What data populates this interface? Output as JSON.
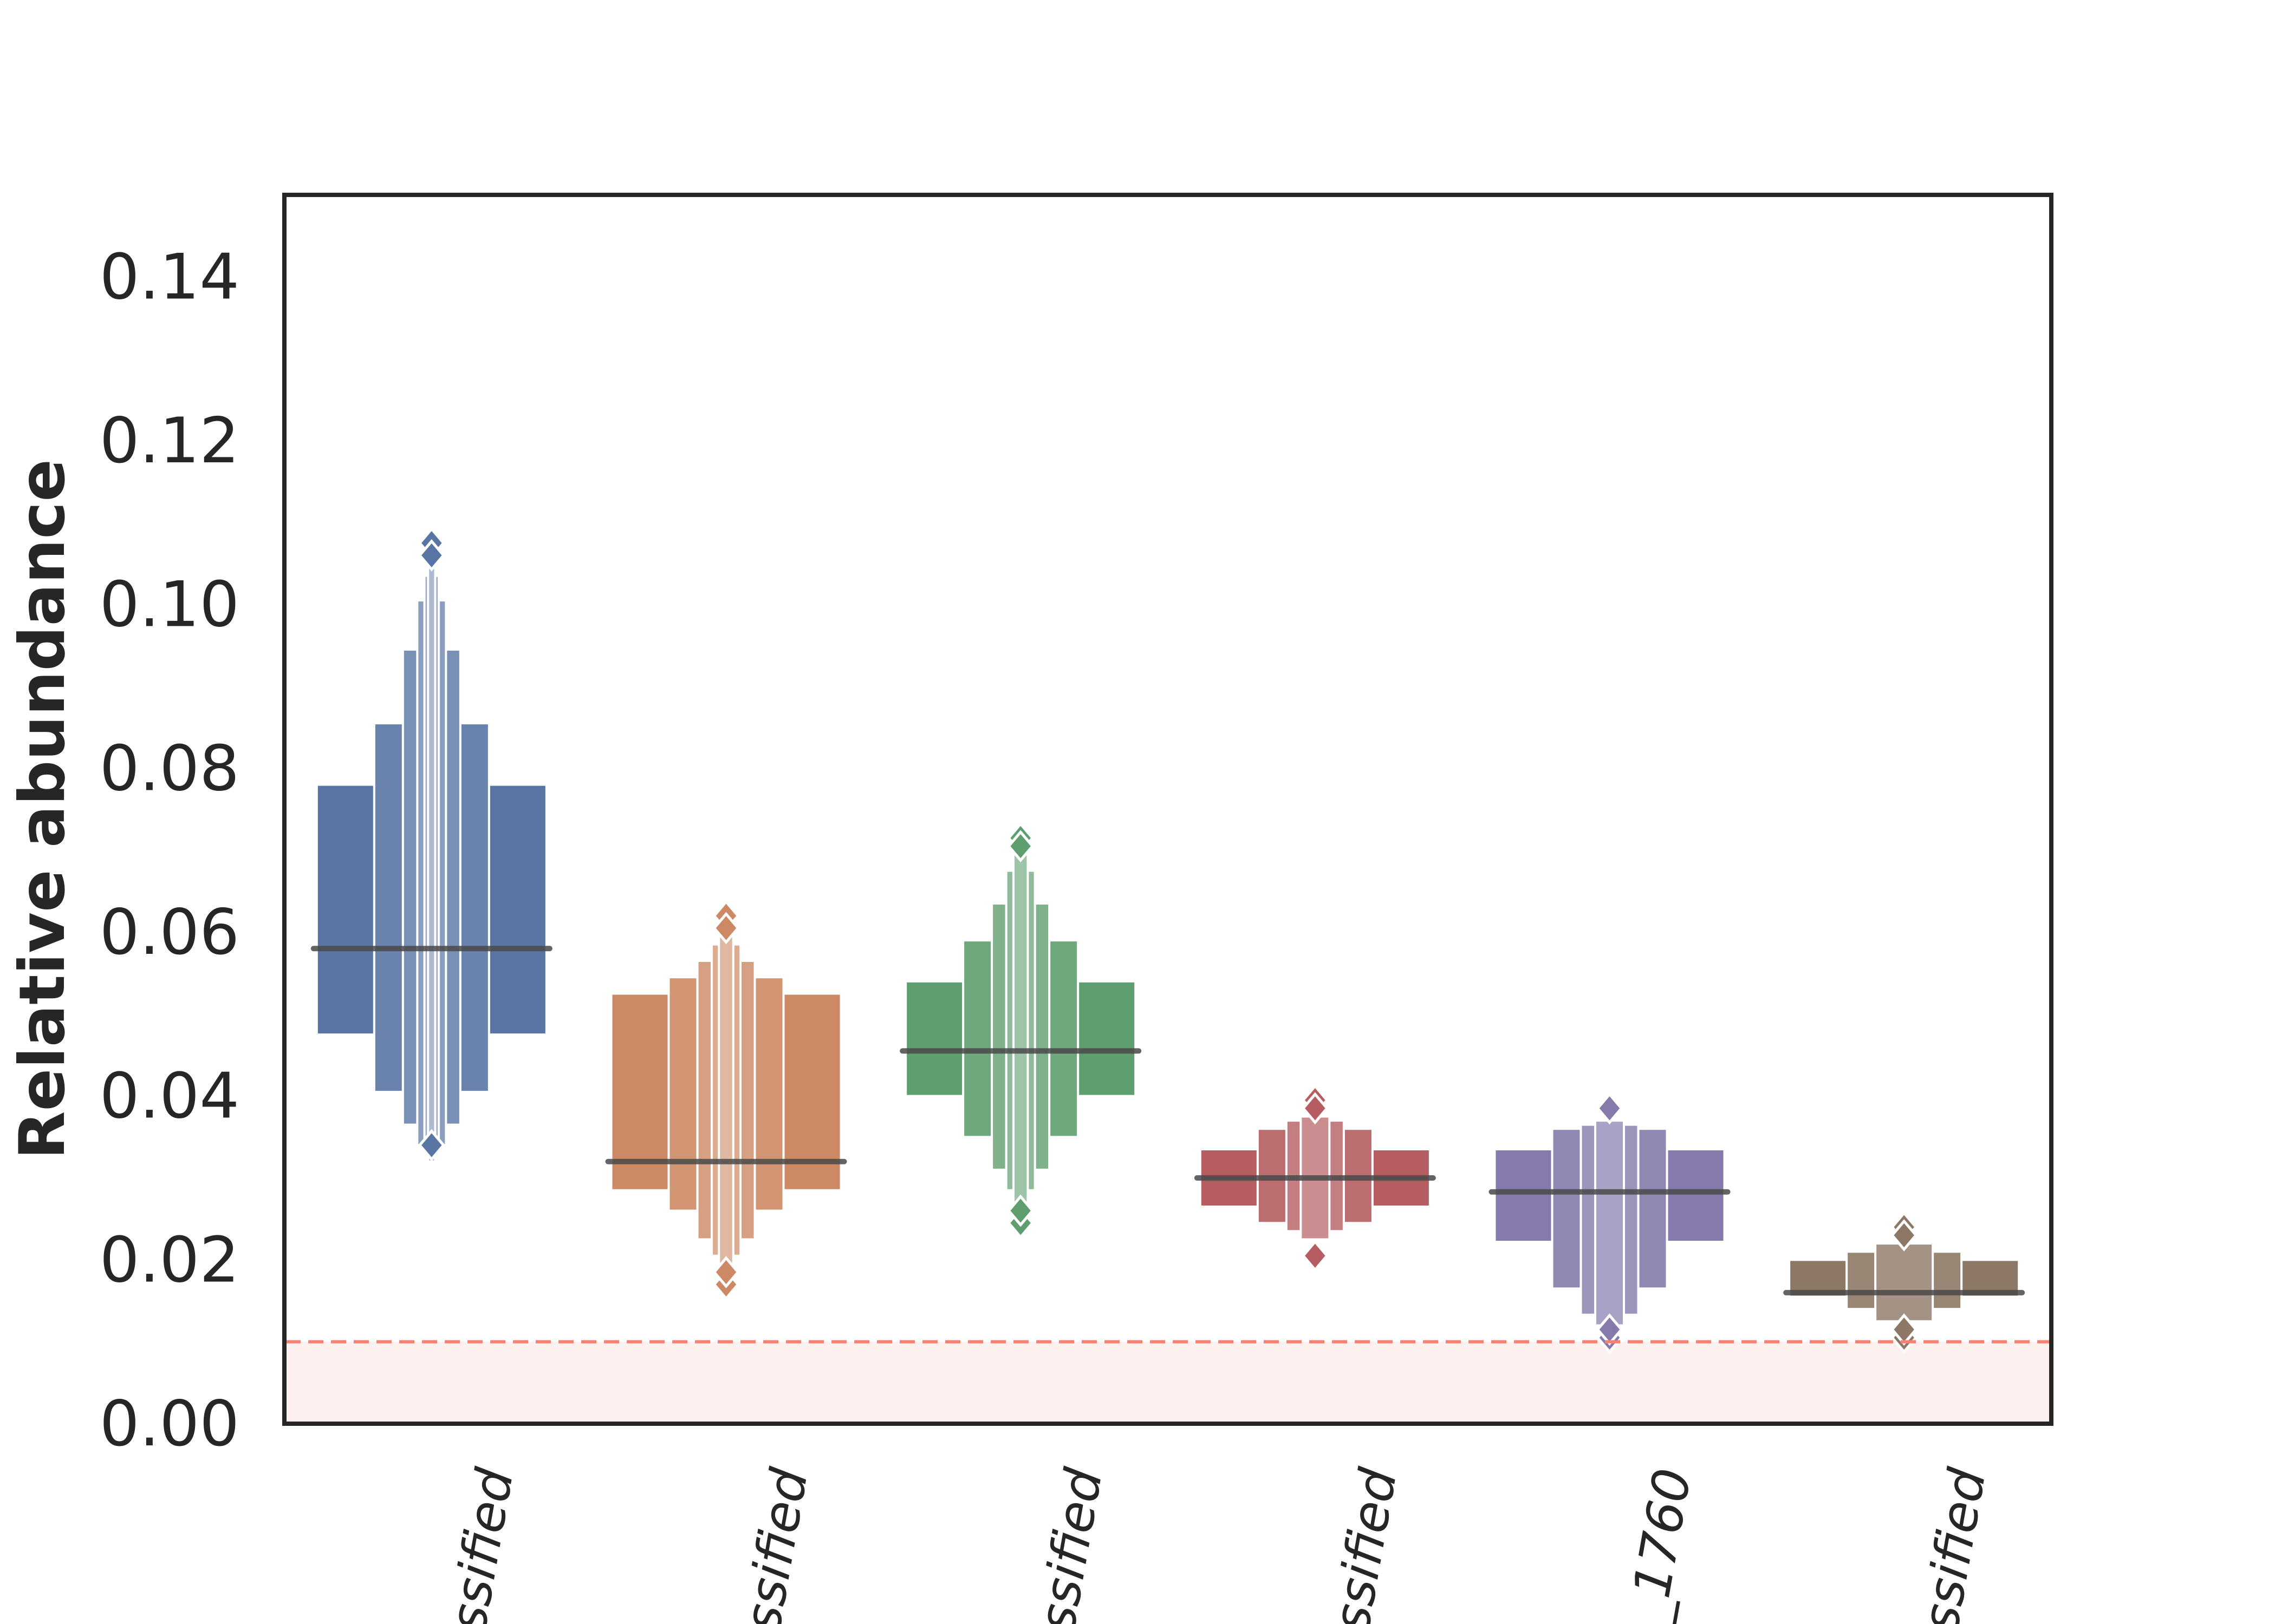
{
  "chart_data": {
    "type": "boxen",
    "title": "",
    "xlabel": "",
    "ylabel": "Relative abundance",
    "ylim": [
      0,
      0.15
    ],
    "yticks": [
      "0.00",
      "0.02",
      "0.04",
      "0.06",
      "0.08",
      "0.10",
      "0.12",
      "0.14"
    ],
    "grid": false,
    "threshold": {
      "value": 0.01,
      "color": "#fa8072"
    },
    "categories": [
      "ssified",
      "ssified",
      "ssified",
      "ssified",
      "_1760",
      "ssified"
    ],
    "series": [
      {
        "color": "#5975a4",
        "median": 0.058,
        "levels": [
          [
            0.0475,
            0.078
          ],
          [
            0.0405,
            0.0855
          ],
          [
            0.0365,
            0.0945
          ],
          [
            0.034,
            0.1005
          ],
          [
            0.033,
            0.1035
          ],
          [
            0.032,
            0.105
          ]
        ],
        "outliers_low": [
          0.034
        ],
        "outliers_high": [
          0.1075,
          0.106
        ]
      },
      {
        "color": "#cc8963",
        "median": 0.032,
        "levels": [
          [
            0.0285,
            0.0525
          ],
          [
            0.026,
            0.0545
          ],
          [
            0.0225,
            0.0565
          ],
          [
            0.0205,
            0.0585
          ],
          [
            0.019,
            0.0595
          ]
        ],
        "outliers_low": [
          0.017,
          0.0185
        ],
        "outliers_high": [
          0.062,
          0.0605
        ]
      },
      {
        "color": "#5f9e6e",
        "median": 0.0455,
        "levels": [
          [
            0.04,
            0.054
          ],
          [
            0.035,
            0.059
          ],
          [
            0.031,
            0.0635
          ],
          [
            0.0285,
            0.0675
          ],
          [
            0.027,
            0.0695
          ]
        ],
        "outliers_low": [
          0.0245,
          0.026
        ],
        "outliers_high": [
          0.0715,
          0.0705
        ]
      },
      {
        "color": "#b55d60",
        "median": 0.03,
        "levels": [
          [
            0.0265,
            0.0335
          ],
          [
            0.0245,
            0.036
          ],
          [
            0.0235,
            0.037
          ],
          [
            0.0225,
            0.0375
          ]
        ],
        "outliers_low": [
          0.0205
        ],
        "outliers_high": [
          0.0395,
          0.0385
        ]
      },
      {
        "color": "#857aab",
        "median": 0.0283,
        "levels": [
          [
            0.0222,
            0.0335
          ],
          [
            0.0165,
            0.036
          ],
          [
            0.0133,
            0.0365
          ],
          [
            0.012,
            0.037
          ]
        ],
        "outliers_low": [
          0.0105,
          0.0115
        ],
        "outliers_high": [
          0.0385
        ]
      },
      {
        "color": "#8d7866",
        "median": 0.016,
        "levels": [
          [
            0.0155,
            0.02
          ],
          [
            0.014,
            0.021
          ],
          [
            0.0125,
            0.022
          ]
        ],
        "outliers_low": [
          0.0105,
          0.0115
        ],
        "outliers_high": [
          0.024,
          0.023
        ]
      }
    ]
  }
}
